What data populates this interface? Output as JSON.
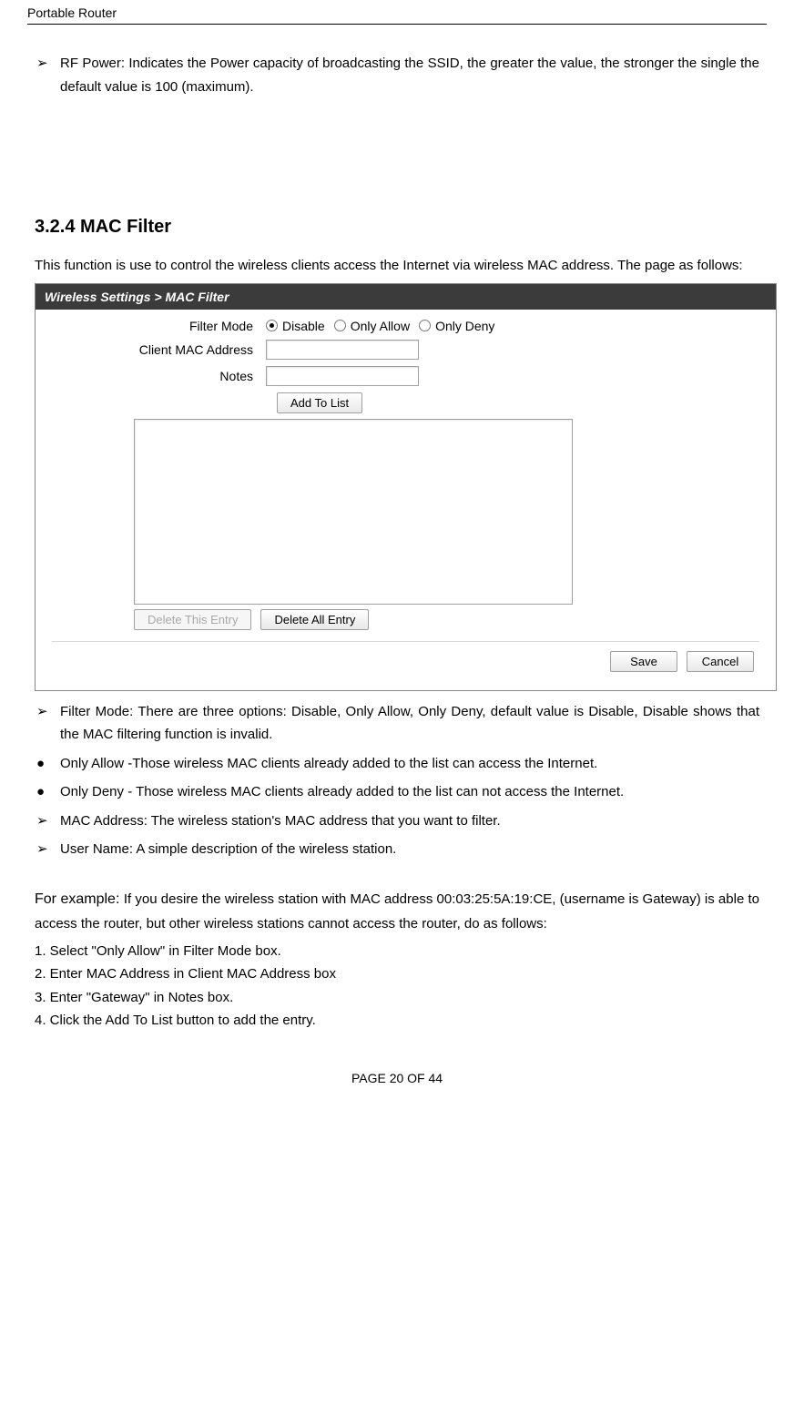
{
  "header": {
    "title": "Portable Router"
  },
  "bullets": {
    "rf_power": "RF Power: Indicates the Power capacity of broadcasting the SSID, the greater the value, the stronger the single the default value is 100 (maximum)."
  },
  "section": {
    "heading": "3.2.4 MAC Filter",
    "intro": "This function is use to control the wireless clients access the Internet via wireless MAC address. The page as follows:"
  },
  "ui": {
    "breadcrumb": "Wireless Settings > MAC Filter",
    "labels": {
      "filter_mode": "Filter Mode",
      "client_mac": "Client MAC Address",
      "notes": "Notes"
    },
    "radios": {
      "disable": "Disable",
      "only_allow": "Only Allow",
      "only_deny": "Only Deny"
    },
    "buttons": {
      "add": "Add To List",
      "delete_entry": "Delete This Entry",
      "delete_all": "Delete All Entry",
      "save": "Save",
      "cancel": "Cancel"
    }
  },
  "post_bullets": {
    "filter_mode_pre": "Filter Mode: There are three options: Disable, Only Allow, Only Deny, default value is ",
    "filter_mode_bold": "Disable",
    "filter_mode_post": ", Disable shows that the MAC filtering function is invalid.",
    "only_allow": "Only Allow -Those wireless MAC clients already added to the list can access the Internet.",
    "only_deny": "Only Deny - Those wireless MAC clients already added to the list can not access the Internet.",
    "mac_address": "MAC Address: The wireless station's MAC address that you want to filter.",
    "user_name": "User Name: A simple description of the wireless station."
  },
  "example": {
    "heading": "For example: ",
    "text_pre": "If you desire the wireless station with MAC address 00:03:25:5A:19:CE, (username is Gateway) is able to access the router, but other wireless stations cannot access the router, do as follows:",
    "step1_pre": "1. Select \"Only Allow\" in ",
    "step1_bold": "Filter Mode",
    "step1_post": " box.",
    "step2_pre": "2. Enter MAC Address in ",
    "step2_bold": "Client MAC Address",
    "step2_post": " box",
    "step3_pre": "3. Enter \"Gateway\" in ",
    "step3_bold": "Notes",
    "step3_post": " box.",
    "step4_pre": "4. Click the ",
    "step4_bold": "Add To List",
    "step4_post": " button to add the entry."
  },
  "footer": {
    "text": "PAGE    20    OF    44"
  }
}
